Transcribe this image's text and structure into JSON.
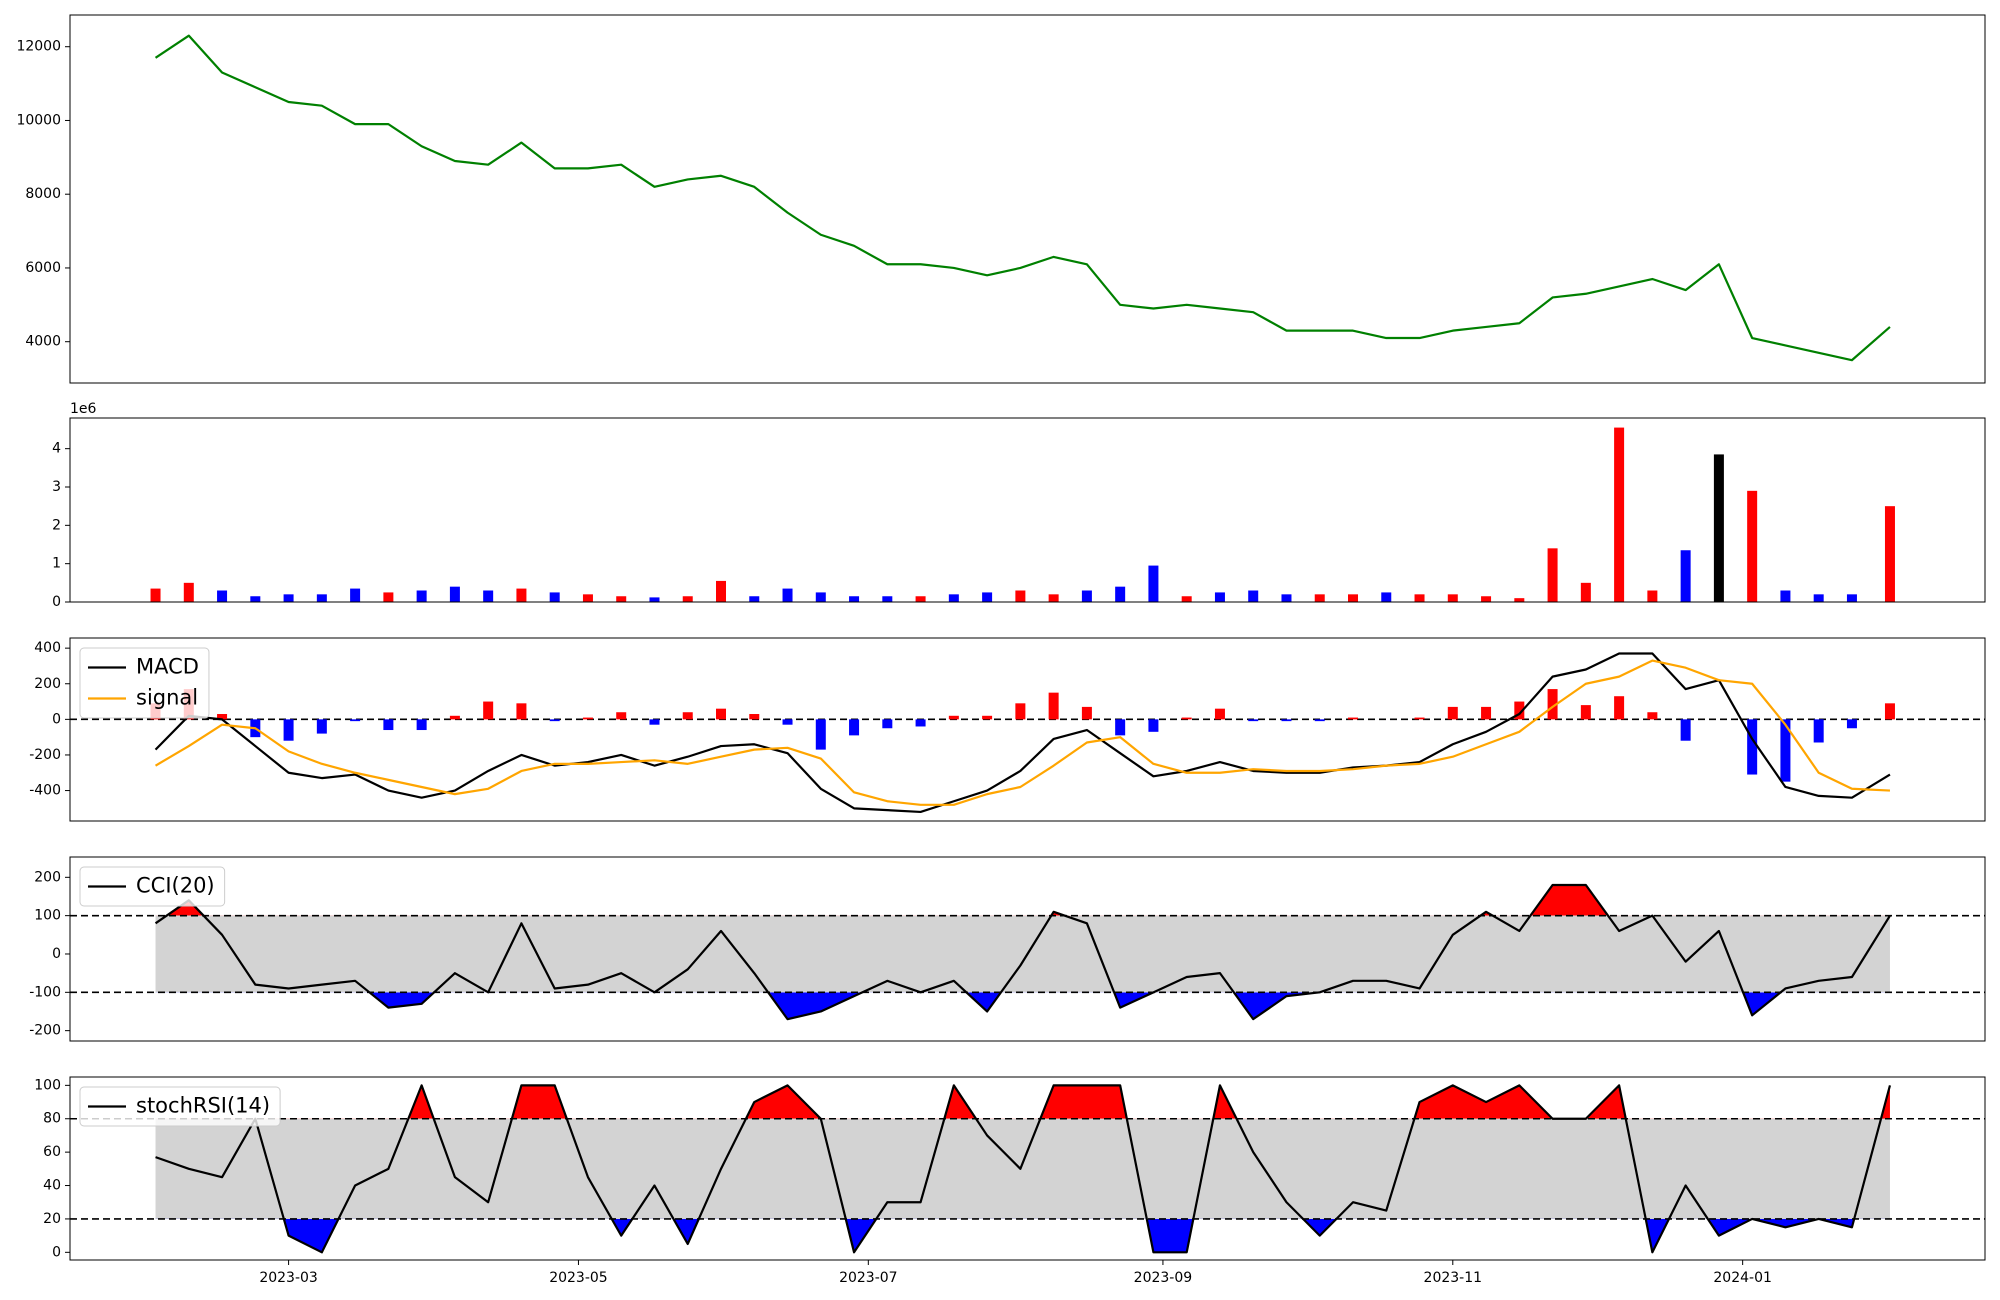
{
  "chart_data": [
    {
      "type": "line",
      "series": [
        {
          "color": "#008000",
          "values": [
            11700,
            12300,
            11300,
            10900,
            10500,
            10400,
            9900,
            9900,
            9300,
            8900,
            8800,
            9400,
            8700,
            8700,
            8800,
            8200,
            8400,
            8500,
            8200,
            7500,
            6900,
            6600,
            6100,
            6100,
            6000,
            5800,
            6000,
            6300,
            6100,
            5000,
            4900,
            5000,
            4900,
            4800,
            4300,
            4300,
            4300,
            4100,
            4100,
            4300,
            4400,
            4500,
            5200,
            5300,
            5500,
            5700,
            5400,
            6100,
            4100,
            3900,
            3700,
            3500,
            4400
          ]
        }
      ],
      "ylim": [
        2880,
        12860
      ],
      "yticks": [
        4000,
        6000,
        8000,
        10000,
        12000
      ]
    },
    {
      "type": "bar",
      "offset_label": "1e6",
      "values": [
        0.35,
        0.5,
        0.3,
        0.15,
        0.2,
        0.2,
        0.35,
        0.25,
        0.3,
        0.4,
        0.3,
        0.35,
        0.25,
        0.2,
        0.15,
        0.12,
        0.15,
        0.55,
        0.15,
        0.35,
        0.25,
        0.15,
        0.15,
        0.15,
        0.2,
        0.25,
        0.3,
        0.2,
        0.3,
        0.4,
        0.95,
        0.15,
        0.25,
        0.3,
        0.2,
        0.2,
        0.2,
        0.25,
        0.2,
        0.2,
        0.15,
        0.1,
        1.4,
        0.5,
        4.55,
        0.3,
        1.35,
        3.85,
        2.9,
        0.3,
        0.2,
        0.2,
        2.5
      ],
      "colors": [
        "#ff0000",
        "#ff0000",
        "#0000ff",
        "#0000ff",
        "#0000ff",
        "#0000ff",
        "#0000ff",
        "#ff0000",
        "#0000ff",
        "#0000ff",
        "#0000ff",
        "#ff0000",
        "#0000ff",
        "#ff0000",
        "#ff0000",
        "#0000ff",
        "#ff0000",
        "#ff0000",
        "#0000ff",
        "#0000ff",
        "#0000ff",
        "#0000ff",
        "#0000ff",
        "#ff0000",
        "#0000ff",
        "#0000ff",
        "#ff0000",
        "#ff0000",
        "#0000ff",
        "#0000ff",
        "#0000ff",
        "#ff0000",
        "#0000ff",
        "#0000ff",
        "#0000ff",
        "#ff0000",
        "#ff0000",
        "#0000ff",
        "#ff0000",
        "#ff0000",
        "#ff0000",
        "#ff0000",
        "#ff0000",
        "#ff0000",
        "#ff0000",
        "#ff0000",
        "#0000ff",
        "#000000",
        "#ff0000",
        "#0000ff",
        "#0000ff",
        "#0000ff",
        "#ff0000"
      ],
      "ylim": [
        0,
        4.8
      ],
      "yticks": [
        0,
        1,
        2,
        3,
        4
      ]
    },
    {
      "type": "line",
      "legend": "upper left",
      "zero_line": 0,
      "series": [
        {
          "name": "MACD",
          "color": "#000000",
          "values": [
            -170,
            20,
            0,
            -150,
            -300,
            -330,
            -310,
            -400,
            -440,
            -400,
            -290,
            -200,
            -260,
            -240,
            -200,
            -260,
            -210,
            -150,
            -140,
            -190,
            -390,
            -500,
            -510,
            -520,
            -460,
            -400,
            -290,
            -110,
            -60,
            -190,
            -320,
            -290,
            -240,
            -290,
            -300,
            -300,
            -270,
            -260,
            -240,
            -140,
            -70,
            30,
            240,
            280,
            370,
            370,
            170,
            220,
            -110,
            -380,
            -430,
            -440,
            -310
          ]
        },
        {
          "name": "signal",
          "color": "#ffa500",
          "values": [
            -260,
            -150,
            -30,
            -50,
            -180,
            -250,
            -300,
            -340,
            -380,
            -420,
            -390,
            -290,
            -250,
            -250,
            -240,
            -230,
            -250,
            -210,
            -170,
            -160,
            -220,
            -410,
            -460,
            -480,
            -480,
            -420,
            -380,
            -260,
            -130,
            -100,
            -250,
            -300,
            -300,
            -280,
            -290,
            -290,
            -280,
            -260,
            -250,
            -210,
            -140,
            -70,
            70,
            200,
            240,
            330,
            290,
            220,
            200,
            -30,
            -300,
            -390,
            -400
          ]
        },
        {
          "kind": "bar",
          "up_color": "#ff0000",
          "down_color": "#0000ff",
          "values": [
            90,
            170,
            30,
            -100,
            -120,
            -80,
            -10,
            -60,
            -60,
            20,
            100,
            90,
            -10,
            10,
            40,
            -30,
            40,
            60,
            30,
            -30,
            -170,
            -90,
            -50,
            -40,
            20,
            20,
            90,
            150,
            70,
            -90,
            -70,
            10,
            60,
            -10,
            -10,
            -10,
            10,
            0,
            10,
            70,
            70,
            100,
            170,
            80,
            130,
            40,
            -120,
            0,
            -310,
            -350,
            -130,
            -50,
            90
          ]
        }
      ],
      "ylim": [
        -571,
        457
      ],
      "yticks": [
        -400,
        -200,
        0,
        200,
        400
      ]
    },
    {
      "type": "band",
      "legend": "upper left",
      "thresholds": [
        100,
        -100
      ],
      "fill_colors": [
        "#ff0000",
        "#0000ff"
      ],
      "band_color": "#d3d3d3",
      "series": [
        {
          "name": "CCI(20)",
          "color": "#000000",
          "values": [
            80,
            140,
            50,
            -80,
            -90,
            -80,
            -70,
            -140,
            -130,
            -50,
            -100,
            80,
            -90,
            -80,
            -50,
            -100,
            -40,
            60,
            -50,
            -170,
            -150,
            -110,
            -70,
            -100,
            -70,
            -150,
            -30,
            110,
            80,
            -140,
            -100,
            -60,
            -50,
            -170,
            -110,
            -100,
            -70,
            -70,
            -90,
            50,
            110,
            60,
            180,
            180,
            60,
            100,
            -20,
            60,
            -160,
            -90,
            -70,
            -60,
            100
          ]
        }
      ],
      "ylim": [
        -227,
        253
      ],
      "yticks": [
        -200,
        -100,
        0,
        100,
        200
      ]
    },
    {
      "type": "band",
      "legend": "upper left",
      "thresholds": [
        80,
        20
      ],
      "fill_colors": [
        "#ff0000",
        "#0000ff"
      ],
      "band_color": "#d3d3d3",
      "series": [
        {
          "name": "stochRSI(14)",
          "color": "#000000",
          "values": [
            57,
            50,
            45,
            80,
            10,
            0,
            40,
            50,
            100,
            45,
            30,
            100,
            100,
            45,
            10,
            40,
            5,
            50,
            90,
            100,
            80,
            0,
            30,
            30,
            100,
            70,
            50,
            100,
            100,
            100,
            0,
            0,
            100,
            60,
            30,
            10,
            30,
            25,
            90,
            100,
            90,
            100,
            80,
            80,
            100,
            0,
            40,
            10,
            20,
            15,
            20,
            15,
            100
          ]
        }
      ],
      "ylim": [
        -4.6,
        105
      ],
      "yticks": [
        0,
        20,
        40,
        60,
        80,
        100
      ],
      "x": [
        "2023-02-01",
        "2023-02-08",
        "2023-02-15",
        "2023-02-22",
        "2023-03-01",
        "2023-03-08",
        "2023-03-15",
        "2023-03-22",
        "2023-03-29",
        "2023-04-05",
        "2023-04-12",
        "2023-04-19",
        "2023-04-26",
        "2023-05-03",
        "2023-05-10",
        "2023-05-17",
        "2023-05-24",
        "2023-05-31",
        "2023-06-07",
        "2023-06-14",
        "2023-06-21",
        "2023-06-28",
        "2023-07-05",
        "2023-07-12",
        "2023-07-19",
        "2023-07-26",
        "2023-08-02",
        "2023-08-09",
        "2023-08-16",
        "2023-08-23",
        "2023-08-30",
        "2023-09-06",
        "2023-09-13",
        "2023-09-20",
        "2023-09-27",
        "2023-10-04",
        "2023-10-11",
        "2023-10-18",
        "2023-10-25",
        "2023-11-01",
        "2023-11-08",
        "2023-11-15",
        "2023-11-22",
        "2023-11-29",
        "2023-12-06",
        "2023-12-13",
        "2023-12-20",
        "2023-12-27",
        "2024-01-03",
        "2024-01-10",
        "2024-01-17",
        "2024-01-24",
        "2024-02-01"
      ],
      "xlim": [
        "2023-01-14",
        "2024-02-21"
      ],
      "xticks": [
        {
          "value": "2023-03-01",
          "label": "2023-03"
        },
        {
          "value": "2023-05-01",
          "label": "2023-05"
        },
        {
          "value": "2023-07-01",
          "label": "2023-07"
        },
        {
          "value": "2023-09-01",
          "label": "2023-09"
        },
        {
          "value": "2023-11-01",
          "label": "2023-11"
        },
        {
          "value": "2024-01-01",
          "label": "2024-01"
        }
      ]
    }
  ]
}
